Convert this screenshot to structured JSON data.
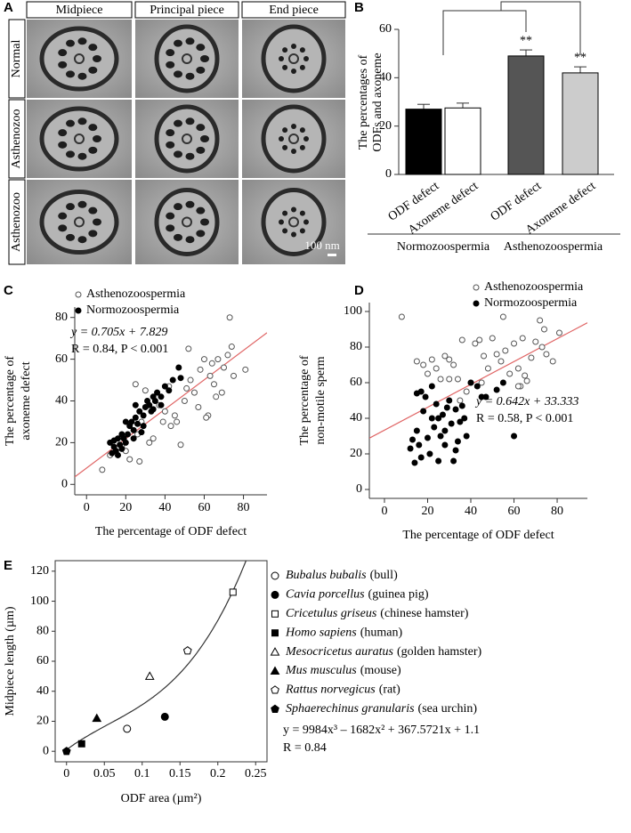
{
  "micrographs": {
    "panel_label": "A",
    "columns": [
      "Midpiece",
      "Principal piece",
      "End piece"
    ],
    "rows": [
      "Normal",
      "Asthenozoo",
      "Asthenozoo"
    ],
    "scale_bar": "100 nm"
  },
  "chart_data": [
    {
      "type": "bar",
      "panel_label": "B",
      "y_label": [
        "The percentages of",
        "ODFs  and axoneme"
      ],
      "categories": [
        "ODF defect",
        "Axoneme defect",
        "ODF defect",
        "Axoneme defect"
      ],
      "groups": [
        "Normozoospermia",
        "Asthenozoospermia"
      ],
      "values": [
        27,
        27.5,
        49,
        42
      ],
      "errors": [
        2,
        2,
        2.5,
        2.5
      ],
      "colors": [
        "#000000",
        "#ffffff",
        "#555555",
        "#cccccc"
      ],
      "significance": [
        null,
        null,
        "**",
        "**"
      ],
      "ylim": [
        0,
        60
      ],
      "yticks": [
        0,
        20,
        40,
        60
      ]
    },
    {
      "type": "scatter",
      "panel_label": "C",
      "x_label": "The percentage of ODF defect",
      "y_label": [
        "The percentage of",
        "axoneme defect"
      ],
      "equation": "y = 0.705x + 7.829",
      "stats": "R = 0.84, P < 0.001",
      "fit": {
        "slope": 0.705,
        "intercept": 7.829,
        "color": "#e06666"
      },
      "xlim": [
        -6,
        92
      ],
      "ylim": [
        -5,
        85
      ],
      "xticks": [
        0,
        20,
        40,
        60,
        80
      ],
      "yticks": [
        0,
        20,
        40,
        60,
        80
      ],
      "series": [
        {
          "name": "Asthenozoospermia",
          "filled": false,
          "color": "#555555",
          "x": [
            8,
            12,
            18,
            20,
            22,
            26,
            27,
            28,
            30,
            25,
            32,
            34,
            37,
            39,
            40,
            42,
            43,
            45,
            46,
            48,
            50,
            51,
            52,
            55,
            58,
            60,
            62,
            61,
            63,
            64,
            65,
            66,
            67,
            69,
            70,
            72,
            73,
            74,
            75,
            81,
            57,
            53
          ],
          "y": [
            7,
            14,
            18,
            16,
            12,
            24,
            11,
            30,
            45,
            48,
            20,
            22,
            38,
            30,
            35,
            47,
            28,
            33,
            30,
            19,
            40,
            46,
            65,
            44,
            55,
            60,
            33,
            32,
            52,
            58,
            48,
            42,
            60,
            44,
            56,
            62,
            80,
            66,
            52,
            55,
            37,
            50
          ]
        },
        {
          "name": "Normozoospermia",
          "filled": true,
          "color": "#000000",
          "x": [
            12,
            13,
            14,
            15,
            16,
            17,
            18,
            19,
            20,
            21,
            22,
            23,
            24,
            25,
            26,
            27,
            28,
            29,
            30,
            31,
            32,
            33,
            34,
            35,
            36,
            38,
            40,
            42,
            44,
            47,
            48,
            14,
            18,
            24,
            29,
            34,
            38,
            25,
            20,
            16
          ],
          "y": [
            20,
            15,
            18,
            16,
            14,
            19,
            17,
            22,
            20,
            24,
            28,
            30,
            26,
            32,
            29,
            35,
            25,
            33,
            37,
            40,
            38,
            35,
            42,
            40,
            44,
            38,
            47,
            45,
            50,
            56,
            51,
            21,
            24,
            22,
            28,
            36,
            42,
            38,
            30,
            22
          ]
        }
      ]
    },
    {
      "type": "scatter",
      "panel_label": "D",
      "x_label": "The percentage of ODF defect",
      "y_label": [
        "The percentage of",
        "non-motile sperm"
      ],
      "equation": "y = 0.642x + 33.333",
      "stats": "R = 0.58, P < 0.001",
      "fit": {
        "slope": 0.642,
        "intercept": 33.333,
        "color": "#e06666"
      },
      "xlim": [
        -7,
        94
      ],
      "ylim": [
        -5,
        105
      ],
      "xticks": [
        0,
        20,
        40,
        60,
        80
      ],
      "yticks": [
        0,
        20,
        40,
        60,
        80,
        100
      ],
      "series": [
        {
          "name": "Asthenozoospermia",
          "filled": false,
          "color": "#555555",
          "x": [
            8,
            15,
            18,
            20,
            22,
            24,
            26,
            28,
            30,
            32,
            34,
            35,
            36,
            38,
            40,
            42,
            44,
            46,
            48,
            50,
            52,
            54,
            55,
            56,
            58,
            60,
            62,
            63,
            64,
            65,
            66,
            68,
            70,
            72,
            73,
            74,
            75,
            78,
            81,
            30,
            45,
            62
          ],
          "y": [
            97,
            72,
            70,
            65,
            73,
            68,
            62,
            75,
            73,
            70,
            62,
            50,
            84,
            55,
            60,
            82,
            84,
            75,
            68,
            85,
            76,
            72,
            97,
            78,
            65,
            82,
            68,
            58,
            85,
            64,
            61,
            74,
            83,
            95,
            80,
            90,
            76,
            72,
            88,
            62,
            60,
            58
          ]
        },
        {
          "name": "Normozoospermia",
          "filled": true,
          "color": "#000000",
          "x": [
            12,
            13,
            14,
            15,
            16,
            17,
            18,
            19,
            20,
            21,
            22,
            23,
            24,
            25,
            26,
            27,
            28,
            29,
            30,
            31,
            32,
            33,
            34,
            35,
            36,
            37,
            38,
            40,
            43,
            45,
            47,
            52,
            55,
            60,
            15,
            17,
            22,
            25,
            28,
            33
          ],
          "y": [
            23,
            28,
            15,
            33,
            25,
            18,
            44,
            52,
            29,
            20,
            40,
            35,
            48,
            16,
            30,
            42,
            25,
            46,
            50,
            37,
            16,
            45,
            27,
            38,
            47,
            40,
            30,
            60,
            58,
            52,
            52,
            56,
            60,
            30,
            54,
            55,
            58,
            40,
            33,
            22
          ]
        }
      ]
    },
    {
      "type": "curve-scatter",
      "panel_label": "E",
      "x_label": "ODF area (µm²)",
      "y_label": "Midpiece length (µm)",
      "equation": "y = 9984x³ – 1682x² + 367.5721x + 1.1",
      "stats": "R = 0.84",
      "fit": {
        "coefficients": [
          9984,
          -1682,
          367.5721,
          1.1
        ],
        "color": "#333333"
      },
      "xlim": [
        -0.015,
        0.265
      ],
      "ylim": [
        -7,
        127
      ],
      "xticks": [
        0,
        0.05,
        0.1,
        0.15,
        0.2,
        0.25
      ],
      "yticks": [
        0,
        20,
        40,
        60,
        80,
        100,
        120
      ],
      "series": [
        {
          "name": "Bubalus bubalis",
          "common": "(bull)",
          "marker": "circle",
          "filled": false,
          "x": [
            0.08
          ],
          "y": [
            15
          ]
        },
        {
          "name": "Cavia porcellus",
          "common": "(guinea pig)",
          "marker": "circle",
          "filled": true,
          "x": [
            0.13
          ],
          "y": [
            23
          ]
        },
        {
          "name": "Cricetulus griseus",
          "common": "(chinese hamster)",
          "marker": "square",
          "filled": false,
          "x": [
            0.22
          ],
          "y": [
            106
          ]
        },
        {
          "name": "Homo sapiens",
          "common": "(human)",
          "marker": "square",
          "filled": true,
          "x": [
            0.02
          ],
          "y": [
            5
          ]
        },
        {
          "name": "Mesocricetus auratus",
          "common": "(golden hamster)",
          "marker": "triangle",
          "filled": false,
          "x": [
            0.11
          ],
          "y": [
            50
          ]
        },
        {
          "name": "Mus musculus",
          "common": "(mouse)",
          "marker": "triangle",
          "filled": true,
          "x": [
            0.04
          ],
          "y": [
            22
          ]
        },
        {
          "name": "Rattus norvegicus",
          "common": "(rat)",
          "marker": "pentagon",
          "filled": false,
          "x": [
            0.16
          ],
          "y": [
            67
          ]
        },
        {
          "name": "Sphaerechinus granularis",
          "common": "(sea urchin)",
          "marker": "pentagon",
          "filled": true,
          "x": [
            0
          ],
          "y": [
            0
          ]
        }
      ]
    }
  ]
}
